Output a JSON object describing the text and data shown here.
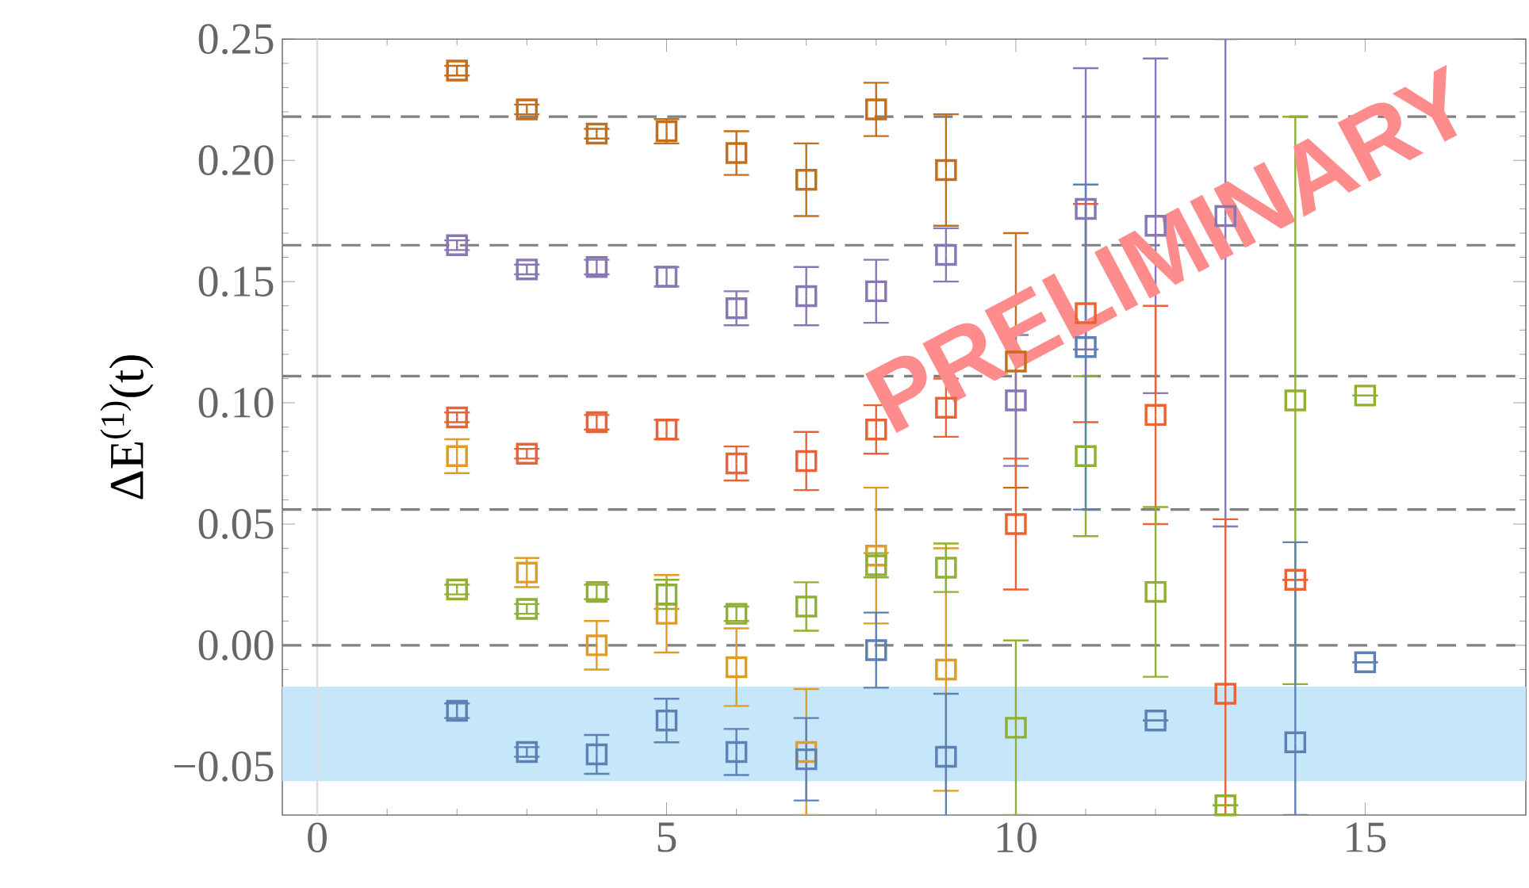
{
  "chart_data": {
    "type": "scatter",
    "ylabel": "ΔE$^{(1)}$(t)",
    "marker": "square",
    "grid": false,
    "annotations": [
      "PRELIMINARY"
    ],
    "x": [
      2,
      3,
      4,
      5,
      6,
      7,
      8,
      9,
      10,
      11,
      12,
      13,
      14,
      15
    ],
    "xlim": [
      -0.5,
      17.3
    ],
    "xticks": [
      0,
      5,
      10,
      15
    ],
    "ylim": [
      -0.07,
      0.25
    ],
    "yticks": [
      {
        "value": -0.05,
        "label": "−0.05"
      },
      {
        "value": 0,
        "label": "0.00"
      },
      {
        "value": 0.05,
        "label": "0.05"
      },
      {
        "value": 0.1,
        "label": "0.10"
      },
      {
        "value": 0.15,
        "label": "0.15"
      },
      {
        "value": 0.2,
        "label": "0.20"
      },
      {
        "value": 0.25,
        "label": "0.25"
      }
    ],
    "ref_lines": [
      {
        "axis": "x",
        "value": 0,
        "color": "#dddddd",
        "line_style": "solid"
      },
      {
        "axis": "y",
        "value": 0,
        "color": "#808080",
        "line_style": "dashed"
      },
      {
        "axis": "y",
        "value": 0.056,
        "color": "#808080",
        "line_style": "dashed"
      },
      {
        "axis": "y",
        "value": 0.111,
        "color": "#808080",
        "line_style": "dashed"
      },
      {
        "axis": "y",
        "value": 0.165,
        "color": "#808080",
        "line_style": "dashed"
      },
      {
        "axis": "y",
        "value": 0.218,
        "color": "#808080",
        "line_style": "dashed"
      }
    ],
    "bands": [
      {
        "axis": "y",
        "from": -0.056,
        "to": -0.017,
        "color": "#c6e6fa"
      }
    ],
    "series": [
      {
        "color": "#c56e1a",
        "values": [
          0.237,
          0.221,
          0.211,
          0.212,
          0.203,
          0.192,
          0.221,
          0.196,
          0.117,
          null,
          null,
          null,
          null,
          null
        ],
        "errors": [
          0.002,
          0.002,
          0.002,
          0.005,
          0.009,
          0.015,
          0.011,
          0.023,
          [
            0.065,
            0.17
          ],
          null,
          null,
          null,
          null,
          null
        ]
      },
      {
        "color": "#8778b3",
        "values": [
          0.165,
          0.155,
          0.156,
          0.152,
          0.139,
          0.144,
          0.146,
          0.161,
          0.101,
          0.18,
          0.173,
          0.177,
          null,
          null
        ],
        "errors": [
          0.002,
          0.002,
          0.003,
          0.004,
          0.007,
          0.012,
          0.013,
          0.011,
          0.027,
          0.058,
          0.069,
          [
            0.049,
            0.25
          ],
          null,
          null
        ]
      },
      {
        "color": "#eb6235",
        "values": [
          0.094,
          0.079,
          0.092,
          0.089,
          0.075,
          0.076,
          0.089,
          0.098,
          0.05,
          0.137,
          0.095,
          -0.02,
          0.027,
          null
        ],
        "errors": [
          0.002,
          0.002,
          0.003,
          0.004,
          0.007,
          0.012,
          0.01,
          0.012,
          0.027,
          0.045,
          0.045,
          [
            -0.07,
            0.052
          ],
          null,
          null
        ]
      },
      {
        "color": "#e19c24",
        "values": [
          0.078,
          0.03,
          0.0,
          0.013,
          -0.009,
          -0.044,
          0.037,
          -0.01,
          null,
          null,
          null,
          null,
          null,
          null
        ],
        "errors": [
          0.007,
          0.006,
          0.01,
          0.016,
          0.016,
          0.026,
          0.028,
          0.05,
          null,
          null,
          null,
          null,
          null,
          null
        ]
      },
      {
        "color": "#8fb032",
        "values": [
          0.023,
          0.015,
          0.022,
          0.021,
          0.013,
          0.016,
          0.033,
          0.032,
          -0.034,
          0.078,
          0.022,
          -0.066,
          0.101,
          0.103
        ],
        "errors": [
          0.002,
          0.002,
          0.003,
          0.006,
          0.003,
          0.01,
          0.005,
          0.01,
          0.036,
          0.033,
          0.035,
          null,
          0.117,
          null
        ]
      },
      {
        "color": "#5e81b5",
        "values": [
          -0.027,
          -0.044,
          -0.045,
          -0.031,
          -0.044,
          -0.047,
          -0.002,
          -0.046,
          null,
          0.123,
          -0.031,
          null,
          -0.04,
          -0.007
        ],
        "errors": [
          0.003,
          0.002,
          0.008,
          0.009,
          0.0095,
          0.017,
          0.0155,
          0.026,
          null,
          0.067,
          null,
          null,
          [
            -0.07,
            0.0425
          ],
          null
        ]
      }
    ]
  }
}
